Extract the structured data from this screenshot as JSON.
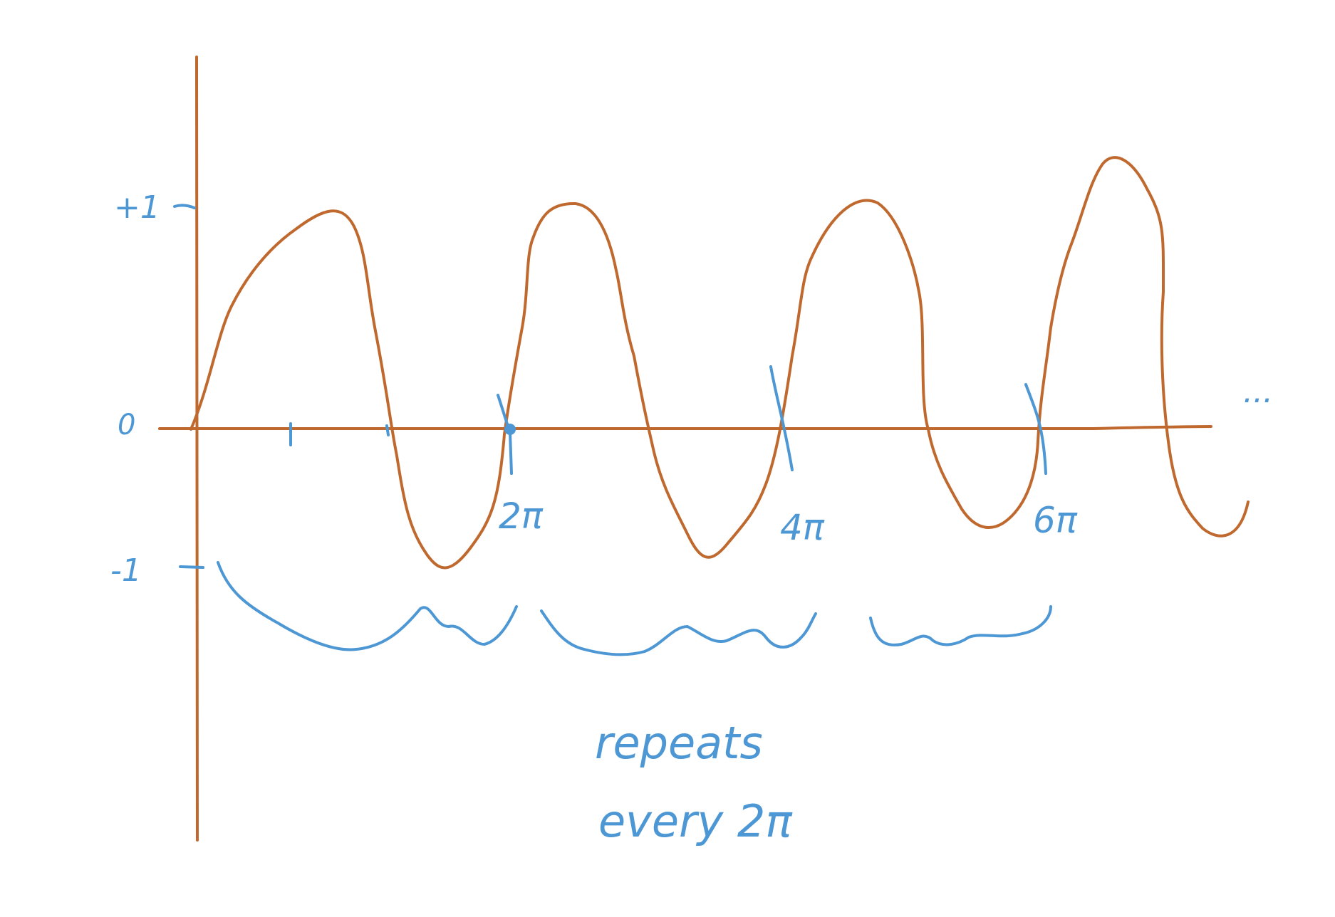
{
  "figure": {
    "axis_color": "#c0692f",
    "annotation_color": "#4c97d4",
    "y_labels": {
      "plus_one": "+1",
      "zero": "0",
      "minus_one": "-1"
    },
    "x_labels": [
      "2π",
      "4π",
      "6π"
    ],
    "continuation": "...",
    "note_line1": "repeats",
    "note_line2": "every 2π"
  }
}
